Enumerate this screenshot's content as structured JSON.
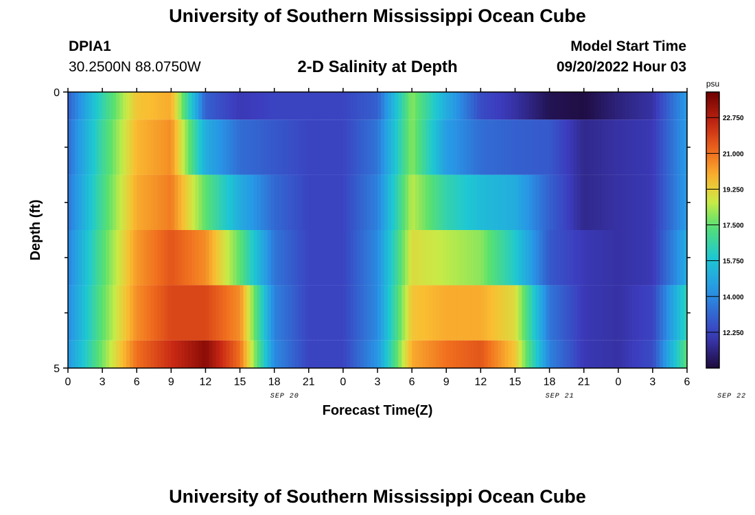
{
  "page": {
    "title_top": "University of Southern Mississippi Ocean Cube",
    "title_bottom": "University of Southern Mississippi Ocean Cube",
    "station_id": "DPIA1",
    "station_coords": "30.2500N  88.0750W",
    "subtitle": "2-D Salinity at Depth",
    "model_start_label": "Model Start Time",
    "model_start_value": "09/20/2022 Hour 03"
  },
  "chart_data": {
    "type": "heatmap",
    "title": "2-D Salinity at Depth",
    "xlabel": "Forecast Time(Z)",
    "ylabel": "Depth (ft)",
    "x_tick_labels": [
      "0",
      "3",
      "6",
      "9",
      "12",
      "15",
      "18",
      "21",
      "0",
      "3",
      "6",
      "9",
      "12",
      "15",
      "18",
      "21",
      "0",
      "3",
      "6"
    ],
    "date_labels": [
      {
        "text": "SEP 20",
        "after_tick": 6.3
      },
      {
        "text": "SEP 21",
        "after_tick": 14.3
      },
      {
        "text": "SEP 22",
        "after_tick": 19.3
      }
    ],
    "y_tick_labels": [
      {
        "value": 0,
        "text": "0"
      },
      {
        "value": 5,
        "text": "5"
      }
    ],
    "ylim": [
      0,
      5
    ],
    "y_minor_ticks": [
      1,
      2,
      3,
      4
    ],
    "colorbar": {
      "unit": "psu",
      "vmin": 10.5,
      "vmax": 24.0,
      "tick_values": [
        22.75,
        21.0,
        19.25,
        17.5,
        15.75,
        14.0,
        12.25
      ],
      "tick_labels": [
        "22.750",
        "21.000",
        "19.250",
        "17.500",
        "15.750",
        "14.000",
        "12.250"
      ]
    },
    "x_hours": [
      0,
      3,
      6,
      9,
      12,
      15,
      18,
      21,
      24,
      27,
      30,
      33,
      36,
      39,
      42,
      45,
      48,
      51,
      54
    ],
    "depth_rows": [
      {
        "depth_top": 0,
        "depth_bottom": 0.5,
        "values": [
          13.0,
          16.5,
          19.5,
          20.0,
          13.0,
          12.0,
          12.3,
          12.3,
          12.3,
          13.0,
          18.0,
          15.0,
          12.5,
          11.8,
          10.8,
          10.6,
          11.3,
          11.8,
          14.5
        ]
      },
      {
        "depth_top": 0.5,
        "depth_bottom": 1.5,
        "values": [
          13.3,
          16.8,
          19.8,
          20.5,
          15.0,
          13.3,
          12.8,
          12.3,
          12.3,
          13.5,
          18.0,
          14.5,
          13.3,
          13.0,
          12.8,
          11.5,
          11.8,
          12.0,
          14.5
        ]
      },
      {
        "depth_top": 1.5,
        "depth_bottom": 2.5,
        "values": [
          13.5,
          17.0,
          20.0,
          20.8,
          17.5,
          15.0,
          13.2,
          12.3,
          12.3,
          13.8,
          18.5,
          16.5,
          15.5,
          15.0,
          13.0,
          11.5,
          11.8,
          12.0,
          14.5
        ]
      },
      {
        "depth_top": 2.5,
        "depth_bottom": 3.5,
        "values": [
          13.8,
          17.3,
          20.3,
          21.5,
          20.5,
          17.5,
          13.5,
          12.3,
          12.3,
          14.0,
          19.0,
          18.5,
          18.0,
          16.0,
          12.8,
          12.0,
          11.8,
          12.0,
          15.0
        ]
      },
      {
        "depth_top": 3.5,
        "depth_bottom": 4.5,
        "values": [
          14.0,
          17.5,
          20.5,
          21.8,
          21.8,
          20.5,
          13.8,
          12.3,
          12.3,
          14.0,
          19.5,
          20.0,
          20.0,
          19.0,
          13.5,
          12.0,
          11.8,
          12.3,
          16.5
        ]
      },
      {
        "depth_top": 4.5,
        "depth_bottom": 5,
        "values": [
          14.3,
          17.8,
          21.0,
          22.3,
          23.5,
          21.0,
          14.0,
          12.3,
          12.3,
          14.3,
          20.0,
          21.0,
          21.5,
          19.5,
          13.8,
          12.0,
          11.8,
          12.5,
          17.5
        ]
      }
    ],
    "grid": false
  }
}
